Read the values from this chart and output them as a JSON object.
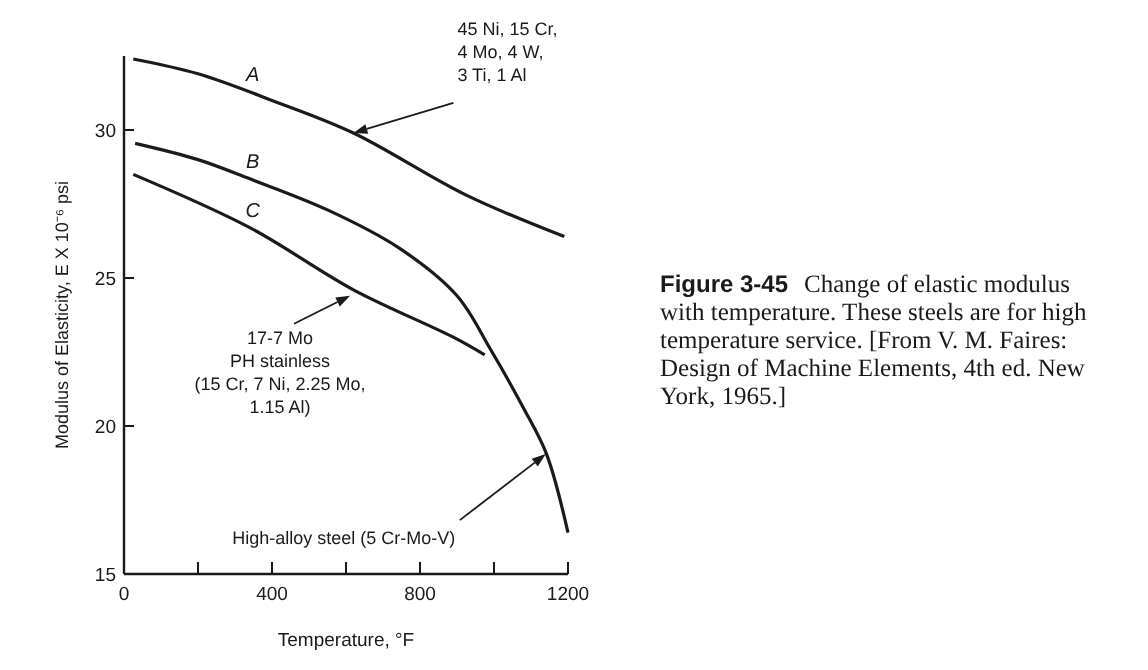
{
  "chart_data": {
    "type": "line",
    "title": "Figure 3-45",
    "subtitle": "Change of elastic modulus with temperature. These steels are for high temperature service. [From V. M. Faires: Design of Machine Elements, 4th ed. New York, 1965.]",
    "xlabel": "Temperature, °F",
    "ylabel": "Modulus of Elasticity, E X 10⁻⁶ psi",
    "xlim": [
      0,
      1200
    ],
    "ylim": [
      15,
      32.5
    ],
    "xticks": [
      0,
      {
        "value": 200,
        "label": null
      },
      400,
      {
        "value": 600,
        "label": null
      },
      800,
      {
        "value": 1000,
        "label": null
      },
      1200
    ],
    "yticks": [
      15,
      20,
      25,
      30
    ],
    "grid": false,
    "marker": "none",
    "line_style": "solid",
    "series": [
      {
        "name": "A",
        "color": "#1a1a1a",
        "x": [
          25,
          200,
          400,
          620,
          925,
          1190
        ],
        "values": [
          32.4,
          31.9,
          31.0,
          29.9,
          27.8,
          26.4
        ]
      },
      {
        "name": "B",
        "color": "#1a1a1a",
        "x": [
          30,
          200,
          340,
          550,
          745,
          900,
          990,
          1080,
          1142,
          1200
        ],
        "values": [
          29.55,
          29.0,
          28.35,
          27.3,
          26.0,
          24.4,
          22.6,
          20.6,
          19.05,
          16.4
        ]
      },
      {
        "name": "C",
        "color": "#1a1a1a",
        "x": [
          25,
          340,
          620,
          890,
          975
        ],
        "values": [
          28.5,
          26.7,
          24.6,
          23.0,
          22.4
        ]
      }
    ],
    "annotations": [
      {
        "text": "45 Ni, 15 Cr,\n4 Mo, 4 W,\n3 Ti, 1 Al",
        "x": 620,
        "y": 29.9
      },
      {
        "text": "17-7 Mo\nPH stainless\n(15 Cr, 7 Ni, 2.25 Mo,\n1.15 Al)",
        "x": 611,
        "y": 24.4
      },
      {
        "text": "High-alloy steel (5 Cr-Mo-V)",
        "x": 1140,
        "y": 19.05
      }
    ]
  }
}
